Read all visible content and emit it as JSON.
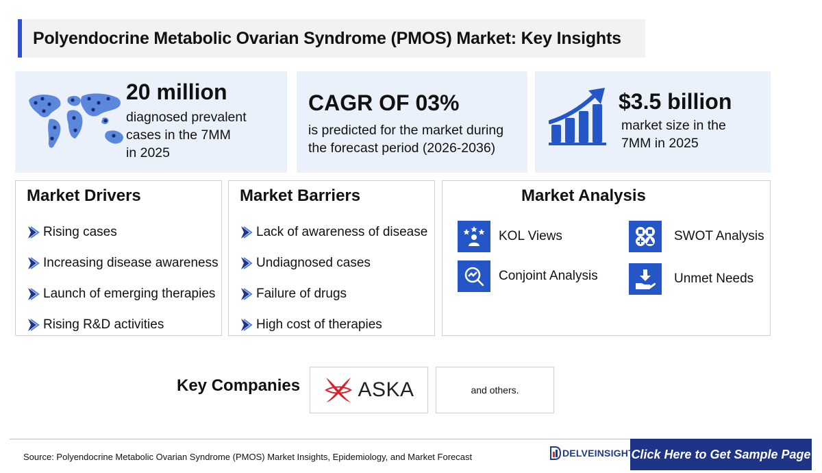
{
  "header": {
    "title": "Polyendocrine Metabolic Ovarian Syndrome (PMOS) Market: Key Insights"
  },
  "stats": {
    "prevalence": {
      "value": "20 million",
      "line1": "diagnosed prevalent",
      "line2": "cases in the 7MM",
      "line3": "in 2025",
      "icon": "world-map-icon"
    },
    "cagr": {
      "value": "CAGR OF 03%",
      "line1": "is predicted for the market during",
      "line2": "the forecast period (2026-2036)"
    },
    "market_size": {
      "value": "$3.5 billion",
      "line1": "market size in the",
      "line2": "7MM in 2025",
      "icon": "growth-chart-icon"
    }
  },
  "drivers": {
    "title": "Market Drivers",
    "items": [
      "Rising cases",
      "Increasing disease awareness",
      "Launch of emerging therapies",
      "Rising R&D activities"
    ]
  },
  "barriers": {
    "title": "Market Barriers",
    "items": [
      "Lack of awareness of disease",
      "Undiagnosed cases",
      "Failure of drugs",
      "High cost of therapies"
    ]
  },
  "analysis": {
    "title": "Market Analysis",
    "items": [
      {
        "label": "KOL Views",
        "icon": "kol-views-icon"
      },
      {
        "label": "SWOT Analysis",
        "icon": "swot-analysis-icon"
      },
      {
        "label": "Conjoint Analysis",
        "icon": "conjoint-analysis-icon"
      },
      {
        "label": "Unmet Needs",
        "icon": "unmet-needs-icon"
      }
    ]
  },
  "companies": {
    "label": "Key Companies",
    "company1": "ASKA",
    "others": "and others."
  },
  "footer": {
    "source": "Source: Polyendocrine Metabolic Ovarian Syndrome (PMOS) Market Insights, Epidemiology, and Market Forecast",
    "brand": "DELVEINSIGHT",
    "cta": "Click Here to Get Sample Page"
  },
  "colors": {
    "accent": "#2e4fd1",
    "icon_blue": "#2456c8",
    "stat_bg": "#eaf1fb",
    "cta_bg": "#1e3487",
    "aska_red": "#d6202a"
  }
}
